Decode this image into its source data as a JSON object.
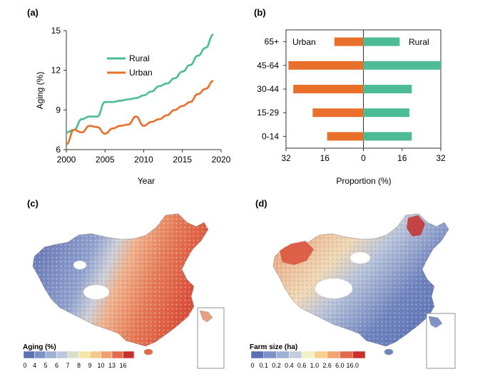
{
  "panels": {
    "a": "(a)",
    "b": "(b)",
    "c": "(c)",
    "d": "(d)"
  },
  "colors": {
    "rural": "#4dbb95",
    "urban": "#e8702a",
    "map_bg": "#f7f7f0"
  },
  "chart_data": [
    {
      "type": "line",
      "panel": "a",
      "xlabel": "Year",
      "ylabel": "Aging (%)",
      "xlim": [
        2000,
        2020
      ],
      "ylim": [
        6,
        15
      ],
      "xticks": [
        2000,
        2005,
        2010,
        2015,
        2020
      ],
      "yticks": [
        6,
        9,
        12,
        15
      ],
      "legend_position": "upper-center",
      "series": [
        {
          "name": "Rural",
          "x": [
            2000,
            2001,
            2002,
            2003,
            2004,
            2005,
            2006,
            2007,
            2008,
            2009,
            2010,
            2011,
            2012,
            2013,
            2014,
            2015,
            2016,
            2017,
            2018,
            2019
          ],
          "values": [
            7.3,
            7.5,
            8.3,
            8.5,
            8.5,
            9.6,
            9.6,
            9.7,
            9.8,
            9.9,
            10.1,
            10.4,
            10.8,
            11.0,
            11.4,
            11.9,
            12.4,
            13.1,
            13.7,
            14.7
          ]
        },
        {
          "name": "Urban",
          "x": [
            2000,
            2001,
            2002,
            2003,
            2004,
            2005,
            2006,
            2007,
            2008,
            2009,
            2010,
            2011,
            2012,
            2013,
            2014,
            2015,
            2016,
            2017,
            2018,
            2019
          ],
          "values": [
            6.4,
            7.5,
            7.3,
            7.8,
            7.7,
            7.2,
            7.6,
            7.8,
            7.9,
            8.5,
            7.8,
            8.1,
            8.3,
            8.6,
            9.0,
            9.3,
            9.6,
            10.2,
            10.6,
            11.2
          ]
        }
      ]
    },
    {
      "type": "bar",
      "orientation": "horizontal-diverging",
      "panel": "b",
      "xlabel": "Proportion (%)",
      "xticks_label": [
        "32",
        "16",
        "0",
        "16",
        "32"
      ],
      "xlim": [
        -32,
        32
      ],
      "categories": [
        "65+",
        "45-64",
        "30-44",
        "15-29",
        "0-14"
      ],
      "series": [
        {
          "name": "Urban",
          "side": "left",
          "values": [
            12,
            31,
            29,
            21,
            15
          ]
        },
        {
          "name": "Rural",
          "side": "right",
          "values": [
            15,
            32,
            20,
            19,
            20
          ]
        }
      ]
    },
    {
      "type": "heatmap",
      "panel": "c",
      "subtype": "choropleth-map",
      "legend_title": "Aging (%)",
      "legend_ticks": [
        "0",
        "4",
        "5",
        "6",
        "7",
        "8",
        "9",
        "10",
        "13",
        "16"
      ],
      "legend_colors": [
        "#5b6fb3",
        "#7b91c7",
        "#9fb0d4",
        "#bcc7dd",
        "#d7dfc9",
        "#f5e6a8",
        "#f6c98a",
        "#f0a070",
        "#e46a4c",
        "#c8302c"
      ]
    },
    {
      "type": "heatmap",
      "panel": "d",
      "subtype": "choropleth-map",
      "legend_title": "Farm size (ha)",
      "legend_ticks": [
        "0",
        "0.1",
        "0.2",
        "0.4",
        "0.6",
        "1.0",
        "2.6",
        "6.0",
        "16.0"
      ],
      "legend_colors": [
        "#5b6fb3",
        "#7b91c7",
        "#9fb0d4",
        "#c3cddf",
        "#f1eec8",
        "#f6d08c",
        "#f2a472",
        "#e4684b",
        "#c8302c"
      ]
    }
  ]
}
